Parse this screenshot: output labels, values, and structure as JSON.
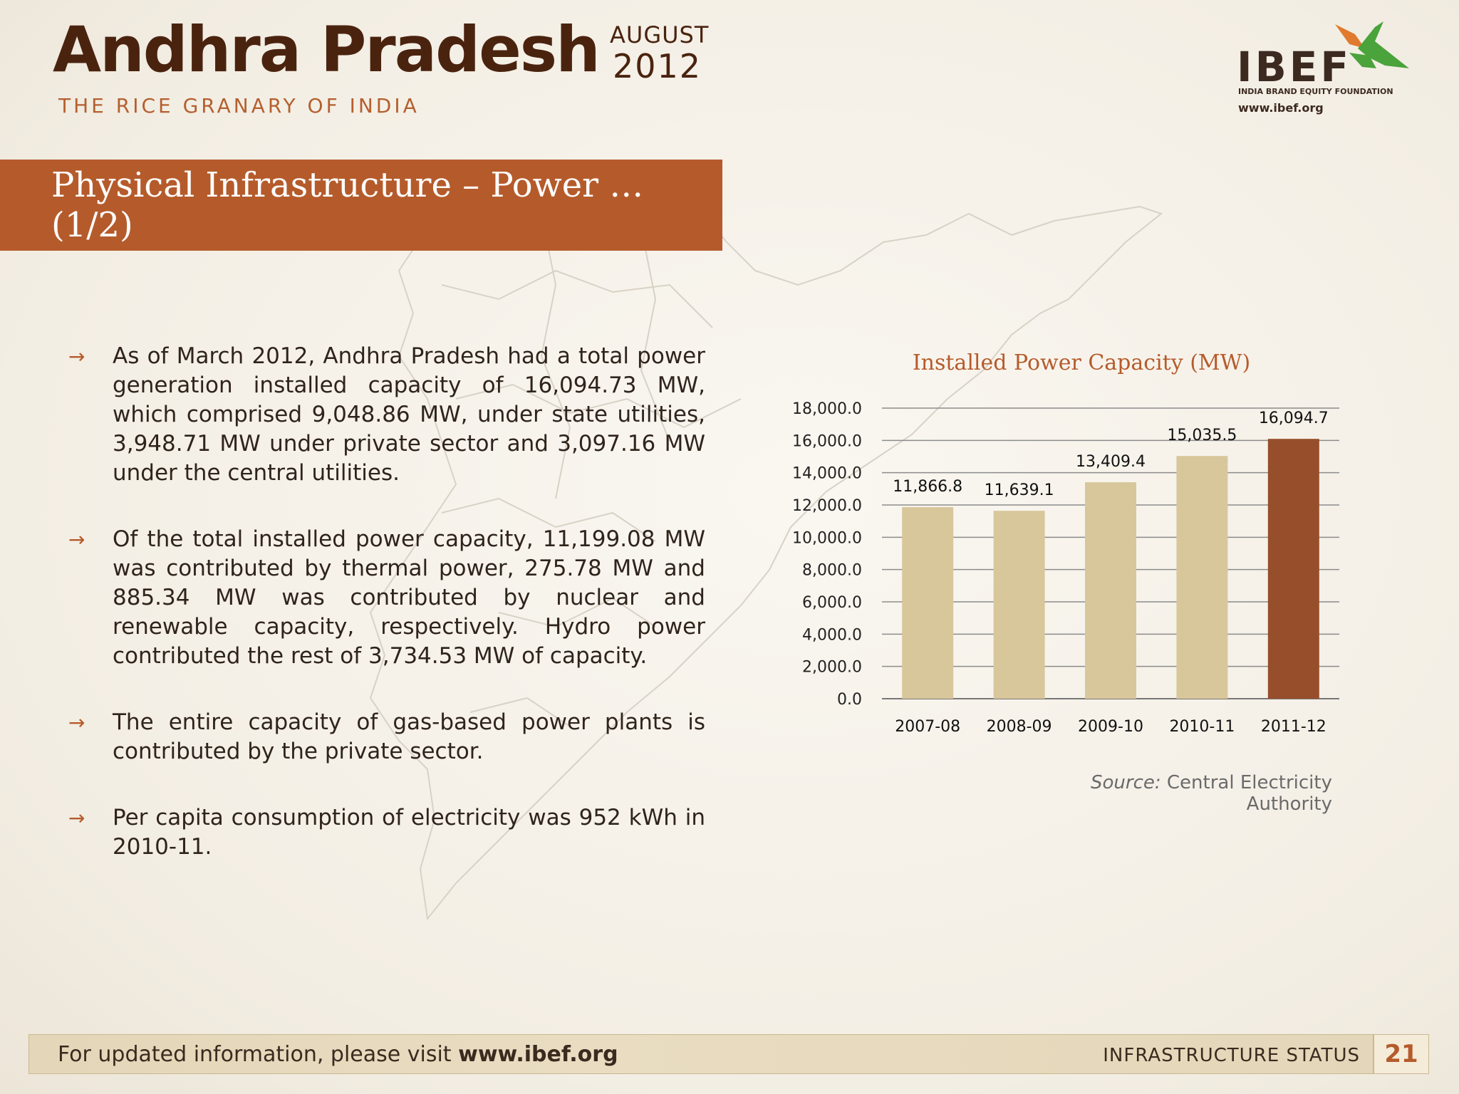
{
  "header": {
    "state_name": "Andhra Pradesh",
    "month": "AUGUST",
    "year": "2012",
    "tagline": "THE RICE GRANARY OF INDIA"
  },
  "logo": {
    "wordmark": "IBEF",
    "subtitle": "INDIA BRAND EQUITY FOUNDATION",
    "url": "www.ibef.org"
  },
  "section": {
    "title": "Physical Infrastructure – Power … (1/2)"
  },
  "bullets": [
    "As of March 2012, Andhra Pradesh had a total power generation installed capacity of 16,094.73 MW, which comprised 9,048.86 MW, under state utilities, 3,948.71 MW under private sector and 3,097.16 MW under the central utilities.",
    "Of the total installed power capacity, 11,199.08 MW was contributed by thermal power, 275.78 MW and 885.34 MW was contributed by nuclear and renewable capacity, respectively. Hydro power contributed the rest of 3,734.53 MW of capacity.",
    "The entire capacity of gas-based power plants is contributed by the private sector.",
    "Per capita consumption of electricity was 952 kWh in 2010-11."
  ],
  "chart_data": {
    "type": "bar",
    "title": "Installed Power Capacity (MW)",
    "categories": [
      "2007-08",
      "2008-09",
      "2009-10",
      "2010-11",
      "2011-12"
    ],
    "values": [
      11866.8,
      11639.1,
      13409.4,
      15035.5,
      16094.7
    ],
    "value_labels": [
      "11,866.8",
      "11,639.1",
      "13,409.4",
      "15,035.5",
      "16,094.7"
    ],
    "ylim": [
      0,
      18000
    ],
    "yticks": [
      "0.0",
      "2,000.0",
      "4,000.0",
      "6,000.0",
      "8,000.0",
      "10,000.0",
      "12,000.0",
      "14,000.0",
      "16,000.0",
      "18,000.0"
    ],
    "grid": true,
    "bar_colors": [
      "#d8c79b",
      "#d8c79b",
      "#d8c79b",
      "#d8c79b",
      "#974f2b"
    ],
    "xlabel": "",
    "ylabel": ""
  },
  "source": {
    "label": "Source:",
    "text": "Central Electricity Authority"
  },
  "footer": {
    "message": "For updated information, please visit",
    "url": "www.ibef.org",
    "section": "INFRASTRUCTURE STATUS",
    "page": "21"
  },
  "colors": {
    "accent": "#b55b2b",
    "title_brown": "#4a230f"
  }
}
